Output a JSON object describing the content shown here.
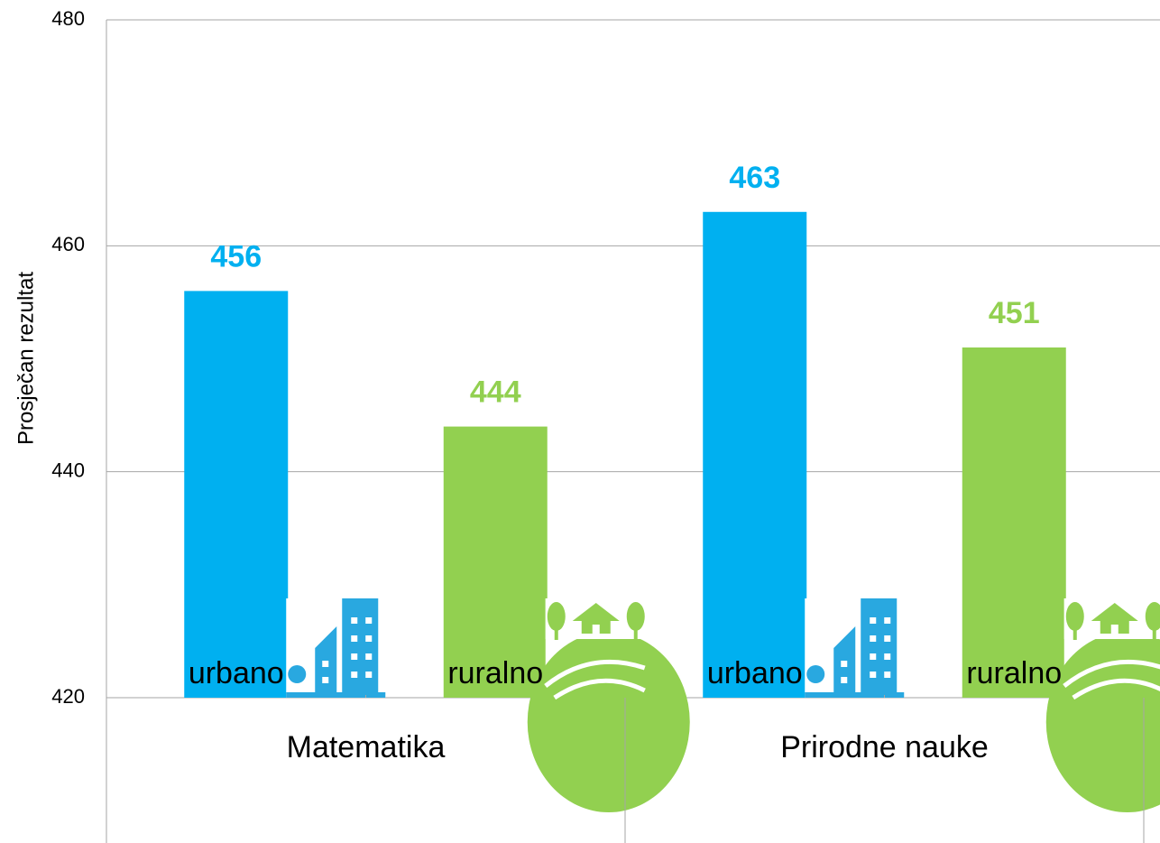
{
  "chart_data": {
    "type": "bar",
    "y_axis_label": "Prosječan rezultat",
    "categories": [
      "Matematika",
      "Prirodne nauke"
    ],
    "series": [
      {
        "name": "urbano",
        "color": "#00b0f0",
        "values": [
          456,
          463
        ]
      },
      {
        "name": "ruralno",
        "color": "#92d050",
        "values": [
          444,
          451
        ]
      }
    ],
    "ylim": [
      420,
      480
    ],
    "yticks": [
      420,
      440,
      460,
      480
    ],
    "grid": true,
    "legend": false
  }
}
